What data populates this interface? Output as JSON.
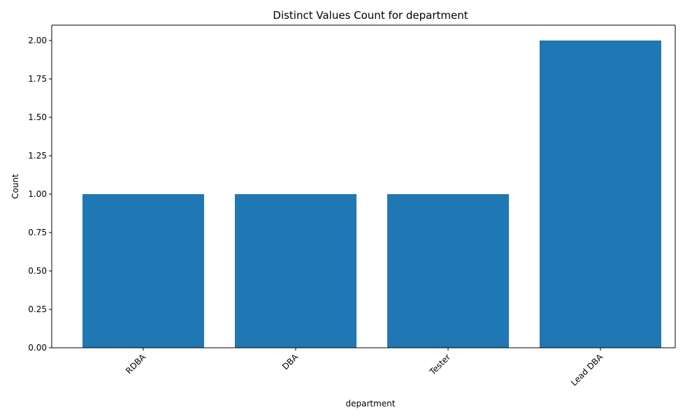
{
  "chart_data": {
    "type": "bar",
    "title": "Distinct Values Count for department",
    "xlabel": "department",
    "ylabel": "Count",
    "categories": [
      "RDBA",
      "DBA",
      "Tester",
      "Lead DBA"
    ],
    "values": [
      1,
      1,
      1,
      2
    ],
    "ylim": [
      0,
      2.1
    ],
    "yticks": [
      "0.00",
      "0.25",
      "0.50",
      "0.75",
      "1.00",
      "1.25",
      "1.50",
      "1.75",
      "2.00"
    ],
    "bar_color": "#1f77b4",
    "grid": false,
    "legend": "none",
    "xtick_rotation_deg": 45
  }
}
